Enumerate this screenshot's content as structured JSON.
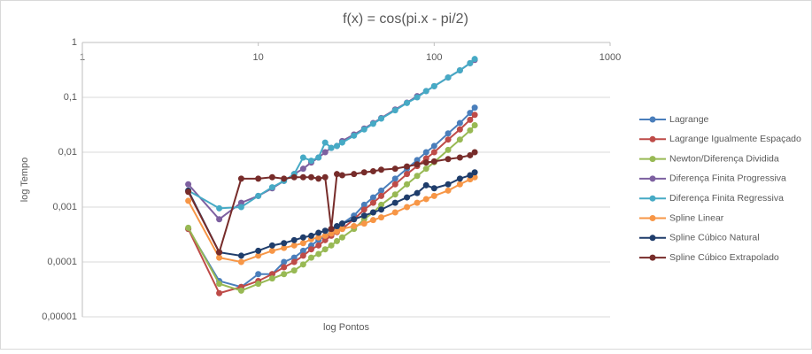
{
  "chart_data": {
    "type": "line",
    "title": "f(x) = cos(pi.x - pi/2)",
    "x_label": "log Pontos",
    "y_label": "log Tempo",
    "x_log": true,
    "y_log": true,
    "grid": true,
    "legend": "right",
    "xlim": [
      1,
      1000
    ],
    "xticks": [
      1,
      10,
      100,
      1000
    ],
    "ylim": [
      1e-05,
      1
    ],
    "yticks": [
      {
        "value": 1e-05,
        "label": "0,00001"
      },
      {
        "value": 0.0001,
        "label": "0,0001"
      },
      {
        "value": 0.001,
        "label": "0,001"
      },
      {
        "value": 0.01,
        "label": "0,01"
      },
      {
        "value": 0.1,
        "label": "0,1"
      },
      1
    ],
    "x": [
      4,
      6,
      8,
      10,
      12,
      14,
      16,
      18,
      20,
      22,
      24,
      26,
      28,
      30,
      35,
      40,
      45,
      50,
      60,
      70,
      80,
      90,
      100,
      120,
      140,
      160,
      170
    ],
    "series": [
      {
        "name": "Lagrange",
        "color": "#4a7ebb",
        "values": [
          0.0004,
          4.5e-05,
          3.5e-05,
          6e-05,
          6e-05,
          0.0001,
          0.00012,
          0.00016,
          0.0002,
          0.00025,
          0.0003,
          0.00035,
          0.0004,
          0.0005,
          0.0007,
          0.0011,
          0.0015,
          0.002,
          0.0033,
          0.005,
          0.0072,
          0.01,
          0.013,
          0.022,
          0.034,
          0.052,
          0.065
        ]
      },
      {
        "name": "Lagrange Igualmente Espaçado",
        "color": "#be4b48",
        "values": [
          0.0004,
          2.7e-05,
          3.5e-05,
          4.5e-05,
          6e-05,
          8e-05,
          0.0001,
          0.00013,
          0.00017,
          0.0002,
          0.00025,
          0.0003,
          0.00035,
          0.0004,
          0.0006,
          0.0009,
          0.0012,
          0.0016,
          0.0026,
          0.004,
          0.0056,
          0.0077,
          0.01,
          0.017,
          0.026,
          0.039,
          0.048
        ]
      },
      {
        "name": "Newton/Diferença Dividida",
        "color": "#98b954",
        "values": [
          0.00042,
          4e-05,
          3e-05,
          4e-05,
          5e-05,
          6e-05,
          7e-05,
          9e-05,
          0.00012,
          0.00014,
          0.00017,
          0.0002,
          0.00024,
          0.00028,
          0.0004,
          0.0006,
          0.0008,
          0.0011,
          0.0017,
          0.0026,
          0.0037,
          0.005,
          0.0066,
          0.011,
          0.017,
          0.025,
          0.031
        ]
      },
      {
        "name": "Diferença Finita Progressiva",
        "color": "#7d60a0",
        "values": [
          0.0026,
          0.0006,
          0.0012,
          0.0016,
          0.0022,
          0.003,
          0.004,
          0.005,
          0.0065,
          0.008,
          0.01,
          0.012,
          0.013,
          0.016,
          0.021,
          0.027,
          0.034,
          0.042,
          0.06,
          0.08,
          0.105,
          0.13,
          0.16,
          0.23,
          0.31,
          0.42,
          0.48
        ]
      },
      {
        "name": "Diferença Finita Regressiva",
        "color": "#46aac5",
        "values": [
          0.002,
          0.00095,
          0.001,
          0.0016,
          0.0023,
          0.003,
          0.004,
          0.008,
          0.007,
          0.008,
          0.015,
          0.012,
          0.013,
          0.015,
          0.02,
          0.026,
          0.033,
          0.041,
          0.058,
          0.079,
          0.1,
          0.13,
          0.16,
          0.23,
          0.31,
          0.42,
          0.5
        ]
      },
      {
        "name": "Spline Linear",
        "color": "#f79646",
        "values": [
          0.0013,
          0.00012,
          0.0001,
          0.00013,
          0.00016,
          0.00018,
          0.0002,
          0.00022,
          0.00026,
          0.00028,
          0.0003,
          0.00033,
          0.00036,
          0.0004,
          0.00045,
          0.0005,
          0.00058,
          0.00065,
          0.0008,
          0.001,
          0.0012,
          0.0014,
          0.0016,
          0.002,
          0.0026,
          0.0032,
          0.0035
        ]
      },
      {
        "name": "Spline Cúbico Natural",
        "color": "#1f3d6b",
        "values": [
          0.002,
          0.00015,
          0.00013,
          0.00016,
          0.0002,
          0.00022,
          0.00025,
          0.00028,
          0.0003,
          0.00034,
          0.00037,
          0.0004,
          0.00045,
          0.0005,
          0.0006,
          0.0007,
          0.0008,
          0.0009,
          0.0012,
          0.0015,
          0.0018,
          0.0025,
          0.0022,
          0.0026,
          0.0033,
          0.0038,
          0.0043
        ]
      },
      {
        "name": "Spline Cúbico Extrapolado",
        "color": "#772c2a",
        "values": [
          0.0019,
          0.00015,
          0.0033,
          0.0033,
          0.0035,
          0.0033,
          0.0035,
          0.0035,
          0.0035,
          0.0033,
          0.0035,
          0.0004,
          0.004,
          0.0038,
          0.004,
          0.0043,
          0.0045,
          0.0048,
          0.005,
          0.0055,
          0.006,
          0.0065,
          0.0068,
          0.0075,
          0.008,
          0.0088,
          0.01
        ]
      }
    ]
  }
}
